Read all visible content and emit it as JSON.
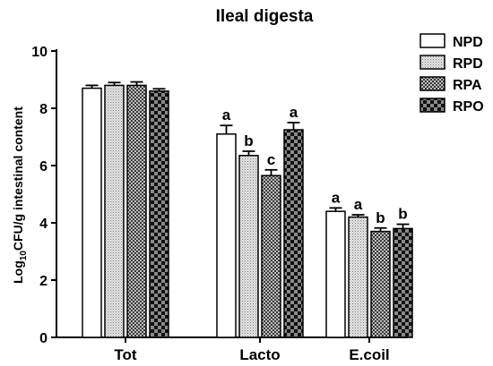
{
  "chart_data": {
    "type": "bar",
    "title": "Ileal digesta",
    "ylabel_parts": [
      "Log",
      "10",
      "CFU/g intestinal content"
    ],
    "xlabel": "",
    "ylim": [
      0,
      10
    ],
    "yticks": [
      0,
      2,
      4,
      6,
      8,
      10
    ],
    "categories": [
      "Tot",
      "Lacto",
      "E.coil"
    ],
    "legend_position": "top-right",
    "series": [
      {
        "name": "NPD",
        "pattern": "white",
        "values": [
          8.7,
          7.1,
          4.4
        ],
        "errors": [
          0.1,
          0.3,
          0.12
        ],
        "labels": [
          "",
          "a",
          "a"
        ]
      },
      {
        "name": "RPD",
        "pattern": "fine-dots",
        "values": [
          8.8,
          6.35,
          4.2
        ],
        "errors": [
          0.1,
          0.15,
          0.08
        ],
        "labels": [
          "",
          "b",
          "a"
        ]
      },
      {
        "name": "RPA",
        "pattern": "dark-checker",
        "values": [
          8.8,
          5.65,
          3.7
        ],
        "errors": [
          0.12,
          0.2,
          0.12
        ],
        "labels": [
          "",
          "c",
          "b"
        ]
      },
      {
        "name": "RPO",
        "pattern": "black-checker",
        "values": [
          8.6,
          7.25,
          3.8
        ],
        "errors": [
          0.08,
          0.25,
          0.15
        ],
        "labels": [
          "",
          "a",
          "b"
        ]
      }
    ]
  }
}
